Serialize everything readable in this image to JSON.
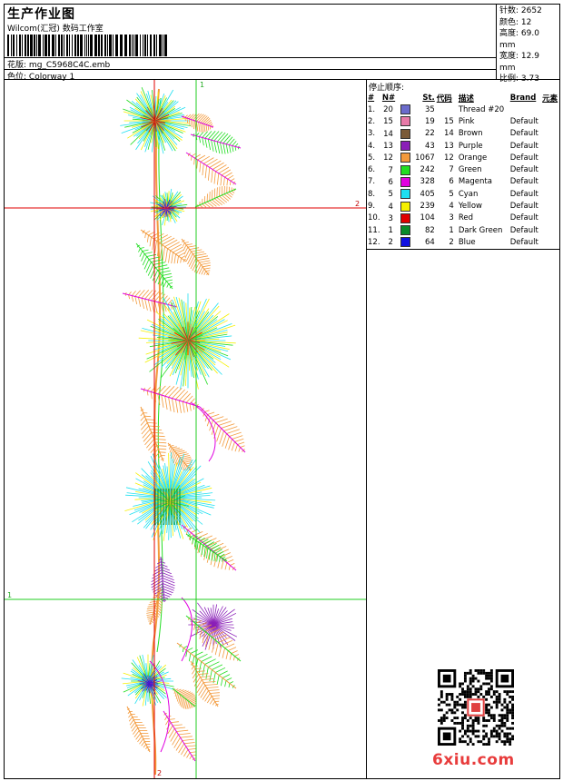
{
  "header": {
    "title": "生产作业图",
    "subtitle": "Wilcom(汇冠) 数码工作室",
    "file_label": "花版:",
    "file_name": "mg_C5968C4C.emb",
    "colorway_label": "色位:",
    "colorway_name": "Colorway 1"
  },
  "stats": [
    {
      "label": "针数:",
      "value": "2652"
    },
    {
      "label": "颜色:",
      "value": "12"
    },
    {
      "label": "高度:",
      "value": "69.0 mm"
    },
    {
      "label": "宽度:",
      "value": "12.9 mm"
    },
    {
      "label": "比例:",
      "value": "3.73"
    }
  ],
  "color_table": {
    "title": "停止顺序:",
    "headers": [
      "#",
      "N#",
      "St.",
      "代码",
      "描述",
      "Brand",
      "元素"
    ],
    "rows": [
      {
        "idx": "1.",
        "n": "20",
        "st": "35",
        "code": "",
        "desc": "Thread #20",
        "brand": "",
        "color": "#6b6bcc"
      },
      {
        "idx": "2.",
        "n": "15",
        "st": "19",
        "code": "15",
        "desc": "Pink",
        "brand": "Default",
        "color": "#e87aa8"
      },
      {
        "idx": "3.",
        "n": "14",
        "st": "22",
        "code": "14",
        "desc": "Brown",
        "brand": "Default",
        "color": "#7a5a38"
      },
      {
        "idx": "4.",
        "n": "13",
        "st": "43",
        "code": "13",
        "desc": "Purple",
        "brand": "Default",
        "color": "#8a1fb8"
      },
      {
        "idx": "5.",
        "n": "12",
        "st": "1067",
        "code": "12",
        "desc": "Orange",
        "brand": "Default",
        "color": "#f39a3c"
      },
      {
        "idx": "6.",
        "n": "7",
        "st": "242",
        "code": "7",
        "desc": "Green",
        "brand": "Default",
        "color": "#22dd22"
      },
      {
        "idx": "7.",
        "n": "6",
        "st": "328",
        "code": "6",
        "desc": "Magenta",
        "brand": "Default",
        "color": "#e000e0"
      },
      {
        "idx": "8.",
        "n": "5",
        "st": "405",
        "code": "5",
        "desc": "Cyan",
        "brand": "Default",
        "color": "#1fe0f0"
      },
      {
        "idx": "9.",
        "n": "4",
        "st": "239",
        "code": "4",
        "desc": "Yellow",
        "brand": "Default",
        "color": "#f5f000"
      },
      {
        "idx": "10.",
        "n": "3",
        "st": "104",
        "code": "3",
        "desc": "Red",
        "brand": "Default",
        "color": "#e00000"
      },
      {
        "idx": "11.",
        "n": "1",
        "st": "82",
        "code": "1",
        "desc": "Dark Green",
        "brand": "Default",
        "color": "#0a8a2a"
      },
      {
        "idx": "12.",
        "n": "2",
        "st": "64",
        "code": "2",
        "desc": "Blue",
        "brand": "Default",
        "color": "#1010e0"
      }
    ]
  },
  "guides": {
    "v1_label": "1",
    "v2_label": "2",
    "h1_label": "1",
    "h2_label": "2"
  },
  "watermark": {
    "logo_text": "6xiu.com"
  }
}
